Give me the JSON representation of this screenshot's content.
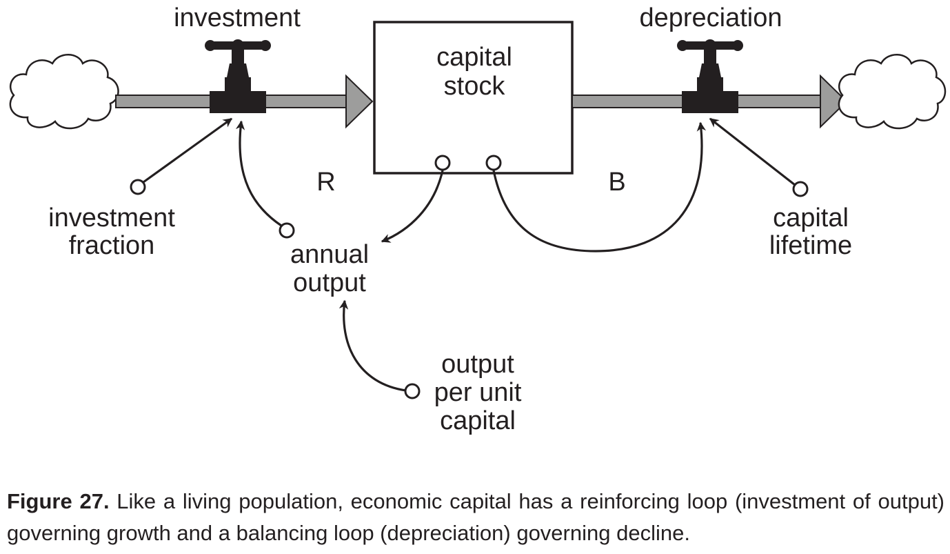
{
  "diagram": {
    "stock": {
      "line1": "capital",
      "line2": "stock"
    },
    "inflow": {
      "label": "investment"
    },
    "outflow": {
      "label": "depreciation"
    },
    "converters": {
      "investment_fraction": {
        "line1": "investment",
        "line2": "fraction"
      },
      "annual_output": {
        "line1": "annual",
        "line2": "output"
      },
      "output_per_unit_capital": {
        "line1": "output",
        "line2": "per unit",
        "line3": "capital"
      },
      "capital_lifetime": {
        "line1": "capital",
        "line2": "lifetime"
      }
    },
    "loops": {
      "reinforcing": "R",
      "balancing": "B"
    }
  },
  "caption": {
    "label": "Figure 27.",
    "text": " Like a living population, economic capital has a reinforcing loop (investment of output) governing growth and a balancing loop (depreciation) governing decline."
  },
  "colors": {
    "ink": "#231f20",
    "flow_pipe": "#9d9d9c"
  }
}
